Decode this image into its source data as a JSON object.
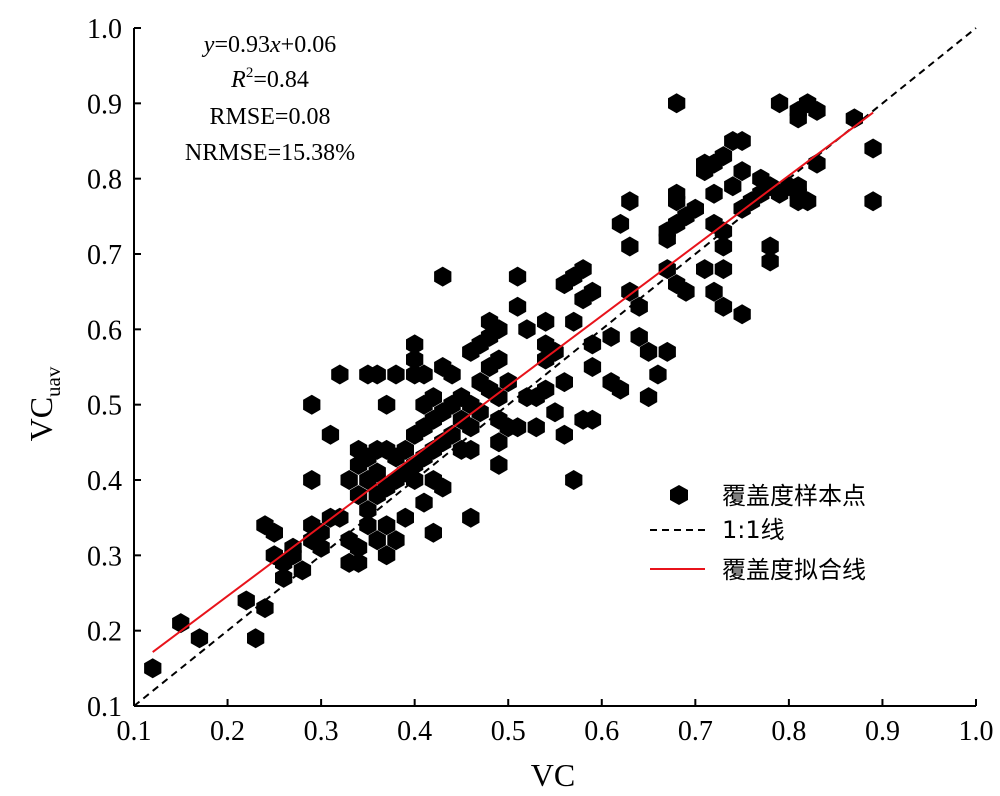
{
  "chart_data": {
    "type": "scatter",
    "xlabel": "VC",
    "ylabel_main": "VC",
    "ylabel_sub": "uav",
    "xlim": [
      0.1,
      1.0
    ],
    "ylim": [
      0.1,
      1.0
    ],
    "x_ticks": [
      "0.1",
      "0.2",
      "0.3",
      "0.4",
      "0.5",
      "0.6",
      "0.7",
      "0.8",
      "0.9",
      "1.0"
    ],
    "y_ticks": [
      "0.1",
      "0.2",
      "0.3",
      "0.4",
      "0.5",
      "0.6",
      "0.7",
      "0.8",
      "0.9",
      "1.0"
    ],
    "x_tick_values": [
      0.1,
      0.2,
      0.3,
      0.4,
      0.5,
      0.6,
      0.7,
      0.8,
      0.9,
      1.0
    ],
    "y_tick_values": [
      0.1,
      0.2,
      0.3,
      0.4,
      0.5,
      0.6,
      0.7,
      0.8,
      0.9,
      1.0
    ],
    "annotation": {
      "equation": {
        "y": "y",
        "eq1": "=0.93",
        "x": "x",
        "eq2": "+0.06"
      },
      "r2": {
        "R": "R",
        "sup": "2",
        "val": "=0.84"
      },
      "rmse": "RMSE=0.08",
      "nrmse": "NRMSE=15.38%"
    },
    "legend": {
      "placement": "right",
      "items": [
        {
          "label": "覆盖度样本点",
          "kind": "marker",
          "color": "#000000"
        },
        {
          "label": "1:1线",
          "kind": "dashed",
          "color": "#000000"
        },
        {
          "label": "覆盖度拟合线",
          "kind": "line",
          "color": "#e8131b"
        }
      ]
    },
    "series": [
      {
        "name": "覆盖度样本点",
        "color": "#000000",
        "points": [
          [
            0.12,
            0.15
          ],
          [
            0.15,
            0.21
          ],
          [
            0.17,
            0.19
          ],
          [
            0.22,
            0.24
          ],
          [
            0.23,
            0.19
          ],
          [
            0.24,
            0.23
          ],
          [
            0.24,
            0.34
          ],
          [
            0.25,
            0.3
          ],
          [
            0.25,
            0.33
          ],
          [
            0.26,
            0.27
          ],
          [
            0.26,
            0.29
          ],
          [
            0.27,
            0.3
          ],
          [
            0.27,
            0.31
          ],
          [
            0.28,
            0.28
          ],
          [
            0.29,
            0.34
          ],
          [
            0.29,
            0.32
          ],
          [
            0.29,
            0.4
          ],
          [
            0.29,
            0.5
          ],
          [
            0.3,
            0.31
          ],
          [
            0.3,
            0.33
          ],
          [
            0.31,
            0.35
          ],
          [
            0.31,
            0.46
          ],
          [
            0.32,
            0.35
          ],
          [
            0.32,
            0.54
          ],
          [
            0.33,
            0.29
          ],
          [
            0.33,
            0.32
          ],
          [
            0.33,
            0.4
          ],
          [
            0.34,
            0.29
          ],
          [
            0.34,
            0.31
          ],
          [
            0.34,
            0.38
          ],
          [
            0.34,
            0.42
          ],
          [
            0.34,
            0.44
          ],
          [
            0.35,
            0.34
          ],
          [
            0.35,
            0.36
          ],
          [
            0.35,
            0.4
          ],
          [
            0.35,
            0.43
          ],
          [
            0.35,
            0.54
          ],
          [
            0.36,
            0.32
          ],
          [
            0.36,
            0.38
          ],
          [
            0.36,
            0.41
          ],
          [
            0.36,
            0.44
          ],
          [
            0.36,
            0.54
          ],
          [
            0.37,
            0.3
          ],
          [
            0.37,
            0.34
          ],
          [
            0.37,
            0.39
          ],
          [
            0.37,
            0.44
          ],
          [
            0.37,
            0.5
          ],
          [
            0.38,
            0.32
          ],
          [
            0.38,
            0.4
          ],
          [
            0.38,
            0.43
          ],
          [
            0.38,
            0.54
          ],
          [
            0.39,
            0.35
          ],
          [
            0.39,
            0.41
          ],
          [
            0.39,
            0.44
          ],
          [
            0.4,
            0.4
          ],
          [
            0.4,
            0.42
          ],
          [
            0.4,
            0.46
          ],
          [
            0.4,
            0.54
          ],
          [
            0.4,
            0.56
          ],
          [
            0.4,
            0.58
          ],
          [
            0.41,
            0.37
          ],
          [
            0.41,
            0.43
          ],
          [
            0.41,
            0.47
          ],
          [
            0.41,
            0.5
          ],
          [
            0.41,
            0.54
          ],
          [
            0.42,
            0.33
          ],
          [
            0.42,
            0.4
          ],
          [
            0.42,
            0.44
          ],
          [
            0.42,
            0.48
          ],
          [
            0.42,
            0.51
          ],
          [
            0.43,
            0.39
          ],
          [
            0.43,
            0.45
          ],
          [
            0.43,
            0.49
          ],
          [
            0.43,
            0.55
          ],
          [
            0.43,
            0.67
          ],
          [
            0.44,
            0.46
          ],
          [
            0.44,
            0.5
          ],
          [
            0.44,
            0.54
          ],
          [
            0.45,
            0.44
          ],
          [
            0.45,
            0.48
          ],
          [
            0.45,
            0.51
          ],
          [
            0.46,
            0.35
          ],
          [
            0.46,
            0.44
          ],
          [
            0.46,
            0.47
          ],
          [
            0.46,
            0.5
          ],
          [
            0.46,
            0.57
          ],
          [
            0.47,
            0.49
          ],
          [
            0.47,
            0.53
          ],
          [
            0.47,
            0.58
          ],
          [
            0.48,
            0.52
          ],
          [
            0.48,
            0.55
          ],
          [
            0.48,
            0.59
          ],
          [
            0.48,
            0.61
          ],
          [
            0.49,
            0.42
          ],
          [
            0.49,
            0.45
          ],
          [
            0.49,
            0.48
          ],
          [
            0.49,
            0.51
          ],
          [
            0.49,
            0.56
          ],
          [
            0.49,
            0.6
          ],
          [
            0.5,
            0.47
          ],
          [
            0.5,
            0.53
          ],
          [
            0.51,
            0.47
          ],
          [
            0.51,
            0.63
          ],
          [
            0.51,
            0.67
          ],
          [
            0.52,
            0.51
          ],
          [
            0.52,
            0.6
          ],
          [
            0.53,
            0.47
          ],
          [
            0.53,
            0.51
          ],
          [
            0.54,
            0.52
          ],
          [
            0.54,
            0.56
          ],
          [
            0.54,
            0.58
          ],
          [
            0.54,
            0.61
          ],
          [
            0.55,
            0.49
          ],
          [
            0.55,
            0.57
          ],
          [
            0.56,
            0.46
          ],
          [
            0.56,
            0.53
          ],
          [
            0.56,
            0.66
          ],
          [
            0.57,
            0.4
          ],
          [
            0.57,
            0.61
          ],
          [
            0.57,
            0.67
          ],
          [
            0.58,
            0.48
          ],
          [
            0.58,
            0.64
          ],
          [
            0.58,
            0.68
          ],
          [
            0.59,
            0.48
          ],
          [
            0.59,
            0.55
          ],
          [
            0.59,
            0.58
          ],
          [
            0.59,
            0.65
          ],
          [
            0.61,
            0.53
          ],
          [
            0.61,
            0.59
          ],
          [
            0.62,
            0.52
          ],
          [
            0.62,
            0.74
          ],
          [
            0.63,
            0.65
          ],
          [
            0.63,
            0.71
          ],
          [
            0.63,
            0.77
          ],
          [
            0.64,
            0.59
          ],
          [
            0.64,
            0.63
          ],
          [
            0.65,
            0.51
          ],
          [
            0.65,
            0.57
          ],
          [
            0.66,
            0.54
          ],
          [
            0.67,
            0.57
          ],
          [
            0.67,
            0.68
          ],
          [
            0.67,
            0.72
          ],
          [
            0.67,
            0.73
          ],
          [
            0.68,
            0.66
          ],
          [
            0.68,
            0.74
          ],
          [
            0.68,
            0.77
          ],
          [
            0.68,
            0.78
          ],
          [
            0.68,
            0.9
          ],
          [
            0.69,
            0.65
          ],
          [
            0.69,
            0.75
          ],
          [
            0.7,
            0.76
          ],
          [
            0.71,
            0.68
          ],
          [
            0.71,
            0.81
          ],
          [
            0.71,
            0.82
          ],
          [
            0.72,
            0.65
          ],
          [
            0.72,
            0.74
          ],
          [
            0.72,
            0.78
          ],
          [
            0.72,
            0.82
          ],
          [
            0.73,
            0.63
          ],
          [
            0.73,
            0.68
          ],
          [
            0.73,
            0.71
          ],
          [
            0.73,
            0.73
          ],
          [
            0.73,
            0.83
          ],
          [
            0.74,
            0.79
          ],
          [
            0.74,
            0.85
          ],
          [
            0.75,
            0.62
          ],
          [
            0.75,
            0.76
          ],
          [
            0.75,
            0.81
          ],
          [
            0.75,
            0.85
          ],
          [
            0.76,
            0.77
          ],
          [
            0.77,
            0.78
          ],
          [
            0.77,
            0.8
          ],
          [
            0.78,
            0.69
          ],
          [
            0.78,
            0.71
          ],
          [
            0.78,
            0.79
          ],
          [
            0.79,
            0.78
          ],
          [
            0.79,
            0.9
          ],
          [
            0.8,
            0.79
          ],
          [
            0.81,
            0.77
          ],
          [
            0.81,
            0.78
          ],
          [
            0.81,
            0.79
          ],
          [
            0.81,
            0.88
          ],
          [
            0.81,
            0.89
          ],
          [
            0.82,
            0.77
          ],
          [
            0.82,
            0.9
          ],
          [
            0.83,
            0.82
          ],
          [
            0.83,
            0.89
          ],
          [
            0.87,
            0.88
          ],
          [
            0.89,
            0.77
          ],
          [
            0.89,
            0.84
          ]
        ]
      },
      {
        "name": "1:1线",
        "x": [
          0.1,
          1.0
        ],
        "y": [
          0.1,
          1.0
        ],
        "color": "#000000"
      },
      {
        "name": "覆盖度拟合线",
        "x": [
          0.12,
          0.89
        ],
        "y": [
          0.1716,
          0.8877
        ],
        "color": "#e8131b"
      }
    ]
  }
}
